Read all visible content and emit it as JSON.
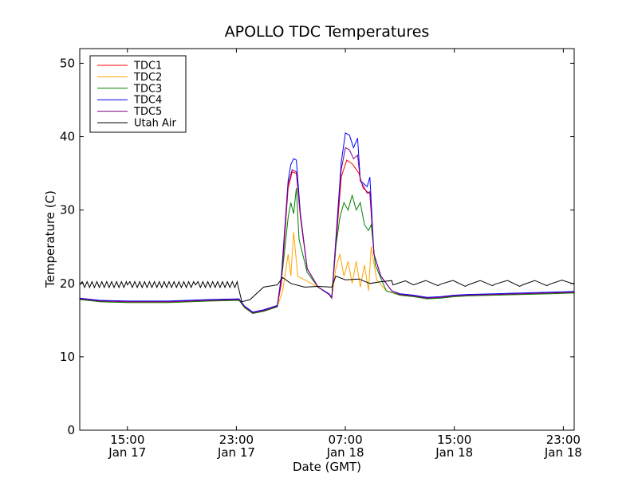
{
  "chart_data": {
    "type": "line",
    "title": "APOLLO TDC Temperatures",
    "xlabel": "Date (GMT)",
    "ylabel": "Temperature (C)",
    "ylim": [
      0,
      52
    ],
    "xlim_hours": [
      11.5,
      47.8
    ],
    "y_ticks": [
      0,
      10,
      20,
      30,
      40,
      50
    ],
    "x_ticks": [
      {
        "hour": 15,
        "time": "15:00",
        "date": "Jan 17"
      },
      {
        "hour": 23,
        "time": "23:00",
        "date": "Jan 17"
      },
      {
        "hour": 31,
        "time": "07:00",
        "date": "Jan 18"
      },
      {
        "hour": 39,
        "time": "15:00",
        "date": "Jan 18"
      },
      {
        "hour": 47,
        "time": "23:00",
        "date": "Jan 18"
      }
    ],
    "x_unit_note": "hours since 00:00 Jan 17 GMT",
    "legend_position": "top-left",
    "series": [
      {
        "name": "TDC1",
        "color": "#ff0000",
        "points": [
          [
            11.5,
            17.9
          ],
          [
            13,
            17.6
          ],
          [
            15,
            17.5
          ],
          [
            18,
            17.5
          ],
          [
            21,
            17.7
          ],
          [
            23.2,
            17.8
          ],
          [
            23.6,
            16.8
          ],
          [
            24.2,
            16.0
          ],
          [
            25,
            16.3
          ],
          [
            26,
            16.9
          ],
          [
            26.3,
            20
          ],
          [
            26.8,
            33
          ],
          [
            27.1,
            35.2
          ],
          [
            27.4,
            35.0
          ],
          [
            27.7,
            29
          ],
          [
            28.2,
            22
          ],
          [
            29,
            19.5
          ],
          [
            29.8,
            18.5
          ],
          [
            30,
            18
          ],
          [
            30.3,
            25
          ],
          [
            30.7,
            34.5
          ],
          [
            31.1,
            36.8
          ],
          [
            31.5,
            36.3
          ],
          [
            32,
            35
          ],
          [
            32.3,
            33
          ],
          [
            32.6,
            32.5
          ],
          [
            32.8,
            32.2
          ],
          [
            33.1,
            24
          ],
          [
            33.6,
            21
          ],
          [
            34.4,
            19
          ],
          [
            35,
            18.5
          ],
          [
            36,
            18.3
          ],
          [
            37,
            18.0
          ],
          [
            38,
            18.1
          ],
          [
            39,
            18.3
          ],
          [
            40,
            18.4
          ],
          [
            42,
            18.5
          ],
          [
            44,
            18.6
          ],
          [
            46,
            18.7
          ],
          [
            47.8,
            18.8
          ]
        ]
      },
      {
        "name": "TDC2",
        "color": "#ffa500",
        "points": [
          [
            11.5,
            17.8
          ],
          [
            13,
            17.5
          ],
          [
            15,
            17.4
          ],
          [
            18,
            17.4
          ],
          [
            21,
            17.6
          ],
          [
            23.2,
            17.7
          ],
          [
            23.6,
            16.7
          ],
          [
            24.2,
            15.9
          ],
          [
            25,
            16.2
          ],
          [
            26,
            16.8
          ],
          [
            26.4,
            19
          ],
          [
            26.8,
            24
          ],
          [
            27.0,
            21
          ],
          [
            27.2,
            27
          ],
          [
            27.5,
            21
          ],
          [
            28,
            20.5
          ],
          [
            29,
            19.5
          ],
          [
            29.8,
            18.5
          ],
          [
            30,
            18
          ],
          [
            30.3,
            22
          ],
          [
            30.6,
            24
          ],
          [
            30.9,
            21
          ],
          [
            31.2,
            23
          ],
          [
            31.5,
            20
          ],
          [
            31.8,
            23
          ],
          [
            32.1,
            19.5
          ],
          [
            32.4,
            22.5
          ],
          [
            32.7,
            19
          ],
          [
            32.9,
            25
          ],
          [
            33.3,
            20.5
          ],
          [
            34,
            19
          ],
          [
            35,
            18.4
          ],
          [
            36,
            18.2
          ],
          [
            37,
            17.9
          ],
          [
            38,
            18.0
          ],
          [
            39,
            18.2
          ],
          [
            40,
            18.3
          ],
          [
            42,
            18.4
          ],
          [
            44,
            18.5
          ],
          [
            46,
            18.6
          ],
          [
            47.8,
            18.7
          ]
        ]
      },
      {
        "name": "TDC3",
        "color": "#008000",
        "points": [
          [
            11.5,
            17.8
          ],
          [
            13,
            17.5
          ],
          [
            15,
            17.4
          ],
          [
            18,
            17.4
          ],
          [
            21,
            17.6
          ],
          [
            23.2,
            17.7
          ],
          [
            23.6,
            16.7
          ],
          [
            24.2,
            15.9
          ],
          [
            25,
            16.2
          ],
          [
            26,
            16.8
          ],
          [
            26.4,
            22
          ],
          [
            26.8,
            29
          ],
          [
            27.0,
            31
          ],
          [
            27.2,
            29.5
          ],
          [
            27.4,
            33
          ],
          [
            27.6,
            26
          ],
          [
            28.2,
            21.5
          ],
          [
            29,
            19.5
          ],
          [
            29.8,
            18.5
          ],
          [
            30,
            18
          ],
          [
            30.3,
            25
          ],
          [
            30.6,
            29
          ],
          [
            30.9,
            31
          ],
          [
            31.2,
            30
          ],
          [
            31.5,
            32
          ],
          [
            31.8,
            30
          ],
          [
            32.1,
            31
          ],
          [
            32.4,
            28
          ],
          [
            32.7,
            27.2
          ],
          [
            32.9,
            28
          ],
          [
            33.2,
            22.5
          ],
          [
            34,
            19
          ],
          [
            35,
            18.4
          ],
          [
            36,
            18.2
          ],
          [
            37,
            17.9
          ],
          [
            38,
            18.0
          ],
          [
            39,
            18.2
          ],
          [
            40,
            18.3
          ],
          [
            42,
            18.4
          ],
          [
            44,
            18.5
          ],
          [
            46,
            18.6
          ],
          [
            47.8,
            18.7
          ]
        ]
      },
      {
        "name": "TDC4",
        "color": "#0000ff",
        "points": [
          [
            11.5,
            18.0
          ],
          [
            13,
            17.7
          ],
          [
            15,
            17.6
          ],
          [
            18,
            17.6
          ],
          [
            21,
            17.8
          ],
          [
            23.2,
            17.9
          ],
          [
            23.6,
            16.9
          ],
          [
            24.2,
            16.1
          ],
          [
            25,
            16.4
          ],
          [
            26,
            17.0
          ],
          [
            26.3,
            21
          ],
          [
            26.8,
            34
          ],
          [
            27.0,
            36.2
          ],
          [
            27.2,
            37.0
          ],
          [
            27.4,
            36.8
          ],
          [
            27.7,
            29.5
          ],
          [
            28.2,
            22
          ],
          [
            29,
            19.5
          ],
          [
            29.8,
            18.6
          ],
          [
            30,
            18.1
          ],
          [
            30.3,
            26
          ],
          [
            30.7,
            36.5
          ],
          [
            31.0,
            40.5
          ],
          [
            31.3,
            40.2
          ],
          [
            31.6,
            38.5
          ],
          [
            31.9,
            39.8
          ],
          [
            32.1,
            34
          ],
          [
            32.4,
            33.5
          ],
          [
            32.6,
            33.2
          ],
          [
            32.8,
            34.5
          ],
          [
            33.1,
            24
          ],
          [
            33.6,
            21
          ],
          [
            34.4,
            19
          ],
          [
            35,
            18.6
          ],
          [
            36,
            18.4
          ],
          [
            37,
            18.1
          ],
          [
            38,
            18.2
          ],
          [
            39,
            18.4
          ],
          [
            40,
            18.5
          ],
          [
            42,
            18.6
          ],
          [
            44,
            18.7
          ],
          [
            46,
            18.8
          ],
          [
            47.8,
            18.9
          ]
        ]
      },
      {
        "name": "TDC5",
        "color": "#800080",
        "points": [
          [
            11.5,
            17.9
          ],
          [
            13,
            17.6
          ],
          [
            15,
            17.5
          ],
          [
            18,
            17.5
          ],
          [
            21,
            17.7
          ],
          [
            23.2,
            17.8
          ],
          [
            23.6,
            16.8
          ],
          [
            24.2,
            16.0
          ],
          [
            25,
            16.3
          ],
          [
            26,
            16.9
          ],
          [
            26.3,
            20.5
          ],
          [
            26.8,
            33.5
          ],
          [
            27.1,
            35.5
          ],
          [
            27.4,
            35.2
          ],
          [
            27.7,
            29.2
          ],
          [
            28.2,
            22
          ],
          [
            29,
            19.5
          ],
          [
            29.8,
            18.5
          ],
          [
            30,
            18
          ],
          [
            30.3,
            25.5
          ],
          [
            30.7,
            35.5
          ],
          [
            31.0,
            38.5
          ],
          [
            31.3,
            38.2
          ],
          [
            31.6,
            37.0
          ],
          [
            31.9,
            37.5
          ],
          [
            32.1,
            34
          ],
          [
            32.4,
            33
          ],
          [
            32.6,
            32.3
          ],
          [
            32.8,
            32.5
          ],
          [
            33.1,
            24
          ],
          [
            33.6,
            21
          ],
          [
            34.4,
            19
          ],
          [
            35,
            18.5
          ],
          [
            36,
            18.3
          ],
          [
            37,
            18.0
          ],
          [
            38,
            18.1
          ],
          [
            39,
            18.3
          ],
          [
            40,
            18.4
          ],
          [
            42,
            18.5
          ],
          [
            44,
            18.6
          ],
          [
            46,
            18.7
          ],
          [
            47.8,
            18.8
          ]
        ]
      },
      {
        "name": "Utah Air",
        "color": "#000000",
        "points": [
          [
            11.5,
            19.8
          ],
          [
            15,
            19.8
          ],
          [
            20,
            19.8
          ],
          [
            23.1,
            19.8
          ],
          [
            23.4,
            17.5
          ],
          [
            24,
            17.8
          ],
          [
            25,
            19.5
          ],
          [
            26,
            19.8
          ],
          [
            26.4,
            20.8
          ],
          [
            27,
            20.0
          ],
          [
            28,
            19.5
          ],
          [
            29,
            19.6
          ],
          [
            30,
            19.5
          ],
          [
            30.3,
            21.0
          ],
          [
            31,
            20.5
          ],
          [
            32,
            20.6
          ],
          [
            32.8,
            20.0
          ],
          [
            33.5,
            20.2
          ],
          [
            34.5,
            19.8
          ],
          [
            36,
            19.8
          ],
          [
            38,
            19.9
          ],
          [
            40,
            19.8
          ],
          [
            42,
            19.9
          ],
          [
            44,
            19.8
          ],
          [
            46,
            19.9
          ],
          [
            47.8,
            19.9
          ]
        ]
      }
    ]
  }
}
